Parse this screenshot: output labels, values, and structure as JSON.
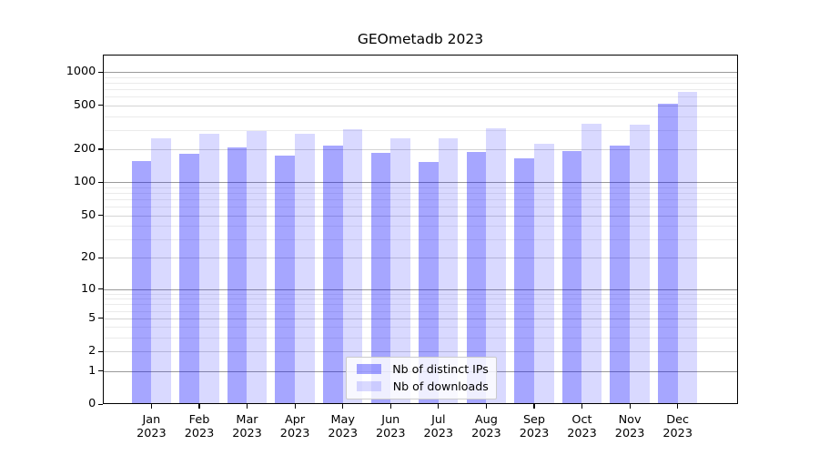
{
  "title": "GEOmetadb 2023",
  "chart_data": {
    "type": "bar",
    "title": "GEOmetadb 2023",
    "y_scale": "log1p",
    "categories": [
      "Jan",
      "Feb",
      "Mar",
      "Apr",
      "May",
      "Jun",
      "Jul",
      "Aug",
      "Sep",
      "Oct",
      "Nov",
      "Dec"
    ],
    "year_label": "2023",
    "series": [
      {
        "name": "Nb of distinct IPs",
        "color": "rgba(0,0,255,0.35)",
        "values": [
          155,
          182,
          210,
          176,
          217,
          185,
          153,
          189,
          166,
          191,
          217,
          515
        ]
      },
      {
        "name": "Nb of downloads",
        "color": "rgba(0,0,255,0.15)",
        "values": [
          250,
          276,
          292,
          276,
          307,
          251,
          252,
          311,
          224,
          343,
          333,
          664
        ]
      }
    ],
    "y_axis": {
      "ticks": [
        0,
        1,
        2,
        5,
        10,
        20,
        50,
        100,
        200,
        500,
        1000
      ],
      "top_value": 1450
    },
    "grid": {
      "power_lines": [
        1,
        10,
        100,
        1000
      ],
      "mid_lines": [
        2,
        5,
        20,
        50,
        200,
        500
      ],
      "minor_lines": [
        3,
        4,
        6,
        7,
        8,
        9,
        30,
        40,
        60,
        70,
        80,
        90,
        300,
        400,
        600,
        700,
        800,
        900
      ]
    },
    "legend": {
      "position": "bottom-center",
      "entries": [
        "Nb of distinct IPs",
        "Nb of downloads"
      ]
    },
    "colors": {
      "grid_power": "#9a9a9a",
      "grid_mid": "#d4d4d4",
      "grid_minor": "#ebebeb",
      "axis": "#000000",
      "background": "#ffffff"
    }
  }
}
